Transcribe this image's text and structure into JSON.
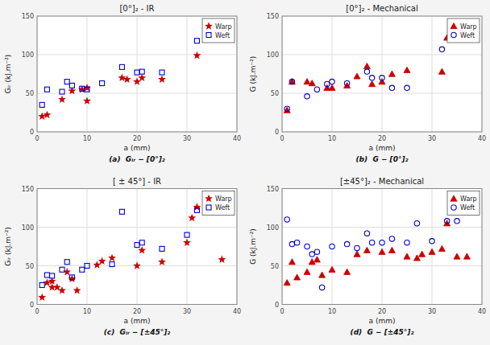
{
  "chart_data": [
    {
      "type": "scatter",
      "title": "[0°]₂ - IR",
      "x_label": "a (mm)",
      "y_label": "Gᵢᵣ (kJ.m⁻²)",
      "annotations": [
        "(a)  Gᵢᵣ − [0°]₂"
      ],
      "xlim": [
        0,
        40
      ],
      "ylim": [
        0,
        150
      ],
      "xticks": [
        0,
        10,
        20,
        30,
        40
      ],
      "yticks": [
        0,
        50,
        100,
        150
      ],
      "grid": true,
      "legend": "upper right",
      "series": [
        {
          "name": "Warp",
          "color": "#CC0000",
          "marker": "star",
          "x": [
            1,
            2,
            5,
            7,
            9,
            10,
            10,
            17,
            18,
            20,
            21,
            25,
            32
          ],
          "values": [
            20,
            22,
            42,
            53,
            55,
            57,
            40,
            70,
            68,
            65,
            70,
            68,
            99
          ]
        },
        {
          "name": "Weft",
          "color": "#0000CC",
          "marker": "square",
          "x": [
            1,
            2,
            5,
            6,
            7,
            9,
            10,
            13,
            17,
            20,
            21,
            25,
            32
          ],
          "values": [
            35,
            55,
            52,
            65,
            60,
            56,
            55,
            63,
            84,
            77,
            78,
            77,
            118
          ]
        }
      ]
    },
    {
      "type": "scatter",
      "title": "[0°]₂ - Mechanical",
      "x_label": "a (mm)",
      "y_label": "G (kJ.m⁻²)",
      "annotations": [
        "(b)  G − [0°]₂"
      ],
      "xlim": [
        0,
        40
      ],
      "ylim": [
        0,
        150
      ],
      "xticks": [
        0,
        10,
        20,
        30,
        40
      ],
      "yticks": [
        0,
        50,
        100,
        150
      ],
      "grid": true,
      "legend": "upper right",
      "series": [
        {
          "name": "Warp",
          "color": "#CC0000",
          "marker": "triangle",
          "x": [
            1,
            2,
            5,
            6,
            9,
            10,
            13,
            15,
            17,
            18,
            20,
            22,
            25,
            32,
            33
          ],
          "values": [
            28,
            65,
            65,
            63,
            57,
            57,
            60,
            72,
            85,
            62,
            65,
            75,
            80,
            78,
            122
          ]
        },
        {
          "name": "Weft",
          "color": "#0000CC",
          "marker": "circle",
          "x": [
            1,
            2,
            5,
            7,
            9,
            10,
            13,
            17,
            18,
            20,
            22,
            25,
            32
          ],
          "values": [
            30,
            65,
            46,
            55,
            62,
            65,
            63,
            78,
            70,
            70,
            57,
            57,
            107
          ]
        }
      ]
    },
    {
      "type": "scatter",
      "title": "[ ± 45°] - IR",
      "x_label": "a (mm)",
      "y_label": "Gᵢᵣ (kJ.m⁻²)",
      "annotations": [
        "(c)  Gᵢᵣ − [±45°]₂"
      ],
      "xlim": [
        0,
        40
      ],
      "ylim": [
        0,
        150
      ],
      "xticks": [
        0,
        10,
        20,
        30,
        40
      ],
      "yticks": [
        0,
        50,
        100,
        150
      ],
      "grid": true,
      "legend": "upper right",
      "series": [
        {
          "name": "Warp",
          "color": "#CC0000",
          "marker": "star",
          "x": [
            1,
            2,
            3,
            3,
            4,
            5,
            6,
            7,
            8,
            12,
            13,
            15,
            20,
            21,
            25,
            30,
            31,
            32,
            37
          ],
          "values": [
            9,
            28,
            22,
            30,
            22,
            18,
            42,
            33,
            18,
            51,
            56,
            60,
            50,
            70,
            55,
            80,
            112,
            126,
            58
          ]
        },
        {
          "name": "Weft",
          "color": "#0000CC",
          "marker": "square",
          "x": [
            1,
            2,
            3,
            5,
            6,
            7,
            9,
            10,
            15,
            17,
            20,
            21,
            25,
            30,
            32
          ],
          "values": [
            25,
            38,
            37,
            45,
            55,
            35,
            45,
            50,
            52,
            120,
            77,
            80,
            72,
            90,
            122
          ]
        }
      ]
    },
    {
      "type": "scatter",
      "title": "[±45°]₂ - Mechanical",
      "x_label": "a (mm)",
      "y_label": "G (kJ.m⁻²)",
      "annotations": [
        "(d)  G − [±45°]₂"
      ],
      "xlim": [
        0,
        40
      ],
      "ylim": [
        0,
        150
      ],
      "xticks": [
        0,
        10,
        20,
        30,
        40
      ],
      "yticks": [
        0,
        50,
        100,
        150
      ],
      "grid": true,
      "legend": "upper right",
      "series": [
        {
          "name": "Warp",
          "color": "#CC0000",
          "marker": "triangle",
          "x": [
            1,
            2,
            3,
            5,
            6,
            7,
            8,
            10,
            13,
            15,
            17,
            20,
            22,
            25,
            27,
            28,
            30,
            32,
            33,
            35,
            37
          ],
          "values": [
            28,
            55,
            35,
            42,
            55,
            58,
            38,
            45,
            42,
            65,
            70,
            68,
            70,
            62,
            60,
            65,
            68,
            72,
            105,
            62,
            62
          ]
        },
        {
          "name": "Weft",
          "color": "#0000CC",
          "marker": "circle",
          "x": [
            1,
            2,
            3,
            5,
            6,
            7,
            8,
            10,
            13,
            15,
            17,
            18,
            20,
            22,
            25,
            27,
            30,
            33,
            35
          ],
          "values": [
            110,
            78,
            80,
            75,
            65,
            68,
            22,
            75,
            78,
            73,
            92,
            80,
            80,
            85,
            80,
            105,
            82,
            108,
            108
          ]
        }
      ]
    }
  ]
}
